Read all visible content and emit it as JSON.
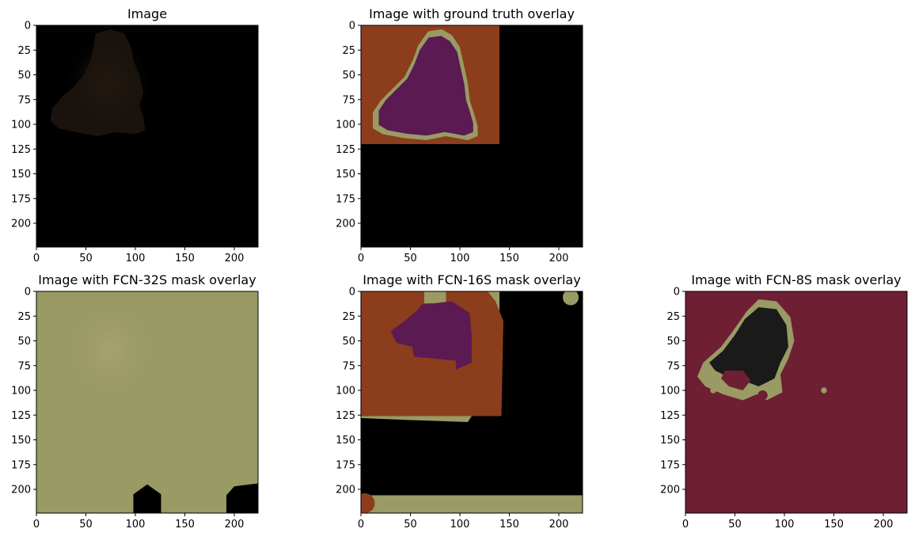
{
  "figure": {
    "panels": [
      {
        "id": "image",
        "title": "Image",
        "layer": "image"
      },
      {
        "id": "ground-truth",
        "title": "Image with ground truth overlay",
        "layer": "gt"
      },
      {
        "id": "fcn32",
        "title": "Image with FCN-32S mask overlay",
        "layer": "fcn32"
      },
      {
        "id": "fcn16",
        "title": "Image with FCN-16S mask overlay",
        "layer": "fcn16"
      },
      {
        "id": "fcn8",
        "title": "Image with FCN-8S mask overlay",
        "layer": "fcn8"
      }
    ]
  },
  "chart_data": [
    {
      "type": "heatmap",
      "title": "Image",
      "xlim": [
        0,
        224
      ],
      "ylim": [
        224,
        0
      ],
      "xticks": [
        0,
        50,
        100,
        150,
        200
      ],
      "yticks": [
        0,
        25,
        50,
        75,
        100,
        125,
        150,
        175,
        200
      ],
      "content": "dark photo of a dog in the upper-left region, black padding elsewhere"
    },
    {
      "type": "heatmap",
      "title": "Image with ground truth overlay",
      "xlim": [
        0,
        224
      ],
      "ylim": [
        224,
        0
      ],
      "xticks": [
        0,
        50,
        100,
        150,
        200
      ],
      "yticks": [
        0,
        25,
        50,
        75,
        100,
        125,
        150,
        175,
        200
      ],
      "classes": {
        "background": "#8b3d1c",
        "dog": "#5b1a52",
        "boundary": "#9a9a65",
        "padding": "#000000"
      }
    },
    {
      "type": "heatmap",
      "title": "Image with FCN-32S mask overlay",
      "xlim": [
        0,
        224
      ],
      "ylim": [
        224,
        0
      ],
      "xticks": [
        0,
        50,
        100,
        150,
        200
      ],
      "yticks": [
        0,
        25,
        50,
        75,
        100,
        125,
        150,
        175,
        200
      ],
      "classes": {
        "predicted": "#9a9a65",
        "other": "#000000"
      }
    },
    {
      "type": "heatmap",
      "title": "Image with FCN-16S mask overlay",
      "xlim": [
        0,
        224
      ],
      "ylim": [
        224,
        0
      ],
      "xticks": [
        0,
        50,
        100,
        150,
        200
      ],
      "yticks": [
        0,
        25,
        50,
        75,
        100,
        125,
        150,
        175,
        200
      ],
      "classes": {
        "background": "#8b3d1c",
        "dog": "#5b1a52",
        "boundary": "#9a9a65",
        "padding": "#000000"
      }
    },
    {
      "type": "heatmap",
      "title": "Image with FCN-8S mask overlay",
      "xlim": [
        0,
        224
      ],
      "ylim": [
        224,
        0
      ],
      "xticks": [
        0,
        50,
        100,
        150,
        200
      ],
      "yticks": [
        0,
        25,
        50,
        75,
        100,
        125,
        150,
        175,
        200
      ],
      "classes": {
        "predicted": "#6e1f33",
        "dog": "#1a1a1a",
        "boundary": "#9a9a65"
      }
    }
  ]
}
